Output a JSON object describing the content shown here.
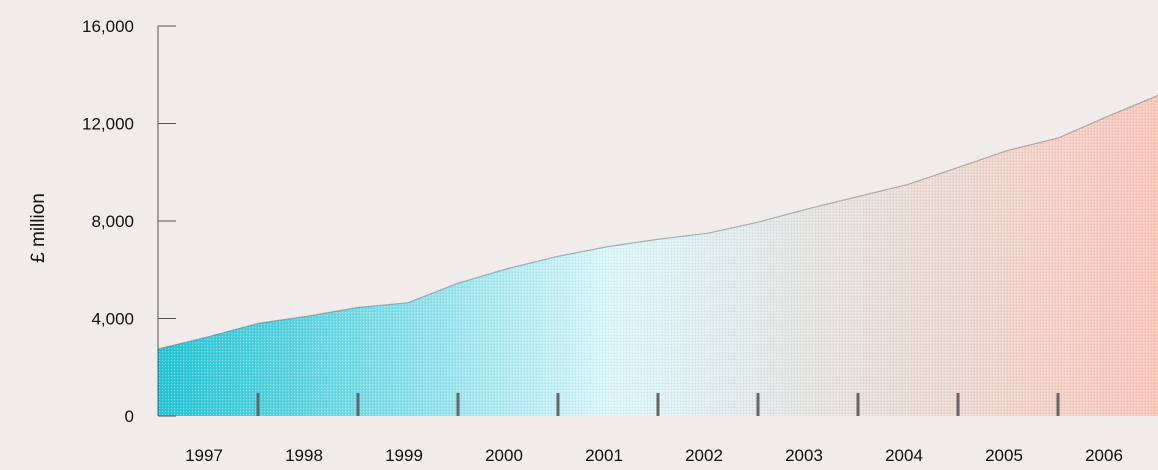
{
  "chart_data": {
    "type": "area",
    "title": "",
    "xlabel": "",
    "ylabel": "£ million",
    "ylim": [
      0,
      16000
    ],
    "yticks": [
      0,
      4000,
      8000,
      12000,
      16000
    ],
    "ytick_labels": [
      "0",
      "4,000",
      "8,000",
      "12,000",
      "16,000"
    ],
    "xlim": [
      1996.5,
      2006.5
    ],
    "x_labels": [
      "1997",
      "1998",
      "1999",
      "2000",
      "2001",
      "2002",
      "2003",
      "2004",
      "2005",
      "2006"
    ],
    "x": [
      1996.5,
      1997.0,
      1997.5,
      1998.0,
      1998.5,
      1999.0,
      1999.5,
      2000.0,
      2000.5,
      2001.0,
      2001.5,
      2002.0,
      2002.5,
      2003.0,
      2003.5,
      2004.0,
      2004.5,
      2005.0,
      2005.5,
      2006.0,
      2006.5
    ],
    "values": [
      2750,
      3250,
      3800,
      4100,
      4450,
      4650,
      5450,
      6050,
      6550,
      6950,
      7250,
      7500,
      7950,
      8500,
      9000,
      9500,
      10200,
      10900,
      11400,
      12300,
      13150
    ],
    "grid": false,
    "colors": {
      "start": "#28c6d6",
      "mid": "#daf6fb",
      "end": "#f9c8bb"
    }
  }
}
